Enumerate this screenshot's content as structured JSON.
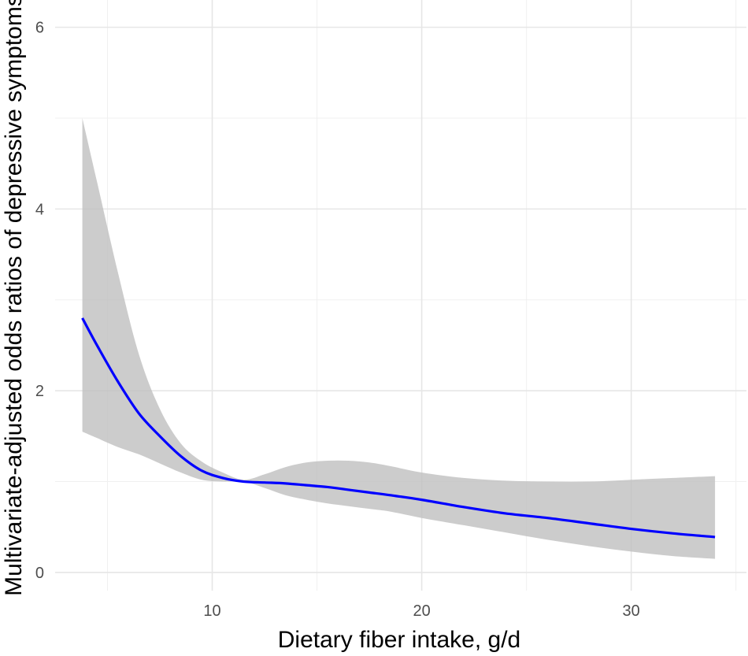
{
  "chart_data": {
    "type": "line",
    "title": "",
    "xlabel": "Dietary fiber intake, g/d",
    "ylabel": "Multivariate-adjusted odds ratios of depressive symptoms",
    "xlim": [
      2.5,
      35.5
    ],
    "ylim": [
      -0.2,
      6.3
    ],
    "xticks": [
      10,
      20,
      30
    ],
    "yticks": [
      0,
      2,
      4,
      6
    ],
    "grid": true,
    "legend": "none",
    "colors": {
      "line": "#0000ff",
      "ribbon": "#bebebe"
    },
    "series": [
      {
        "x": [
          3.8,
          4.5,
          5.5,
          6.5,
          7.5,
          8.5,
          9.5,
          10.5,
          11.5,
          12.5,
          13.5,
          14.5,
          15.5,
          16.5,
          17.5,
          18.5,
          20,
          22,
          24,
          26,
          28,
          30,
          32,
          34
        ],
        "y": [
          2.8,
          2.5,
          2.1,
          1.75,
          1.5,
          1.28,
          1.12,
          1.04,
          1.0,
          0.99,
          0.98,
          0.96,
          0.94,
          0.91,
          0.88,
          0.85,
          0.8,
          0.72,
          0.65,
          0.6,
          0.54,
          0.48,
          0.43,
          0.39
        ],
        "lower": [
          1.55,
          1.48,
          1.38,
          1.3,
          1.2,
          1.1,
          1.02,
          1.0,
          1.0,
          0.93,
          0.85,
          0.8,
          0.76,
          0.73,
          0.7,
          0.67,
          0.6,
          0.52,
          0.44,
          0.36,
          0.29,
          0.23,
          0.18,
          0.15
        ],
        "upper": [
          5.0,
          4.3,
          3.3,
          2.4,
          1.8,
          1.42,
          1.22,
          1.1,
          1.02,
          1.08,
          1.16,
          1.21,
          1.23,
          1.23,
          1.21,
          1.17,
          1.1,
          1.04,
          1.01,
          1.0,
          1.0,
          1.02,
          1.04,
          1.06
        ]
      }
    ]
  }
}
